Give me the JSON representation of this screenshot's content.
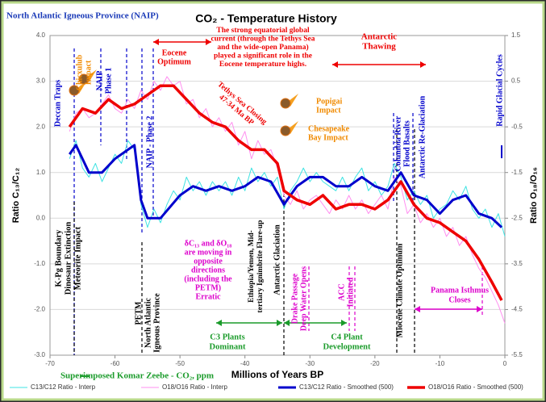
{
  "chart_data": {
    "type": "line",
    "title": "CO₂ - Temperature History",
    "xlabel": "Millions of Years BP",
    "ylabel": "Ratio C₁₃/C₁₂",
    "y2label": "Ratio O₁₈/O₁₆",
    "xlim": [
      -70,
      0
    ],
    "xticks": [
      -70,
      -60,
      -50,
      -40,
      -30,
      -20,
      -10,
      0
    ],
    "ylim": [
      -3,
      4
    ],
    "yticks": [
      {
        "value": -3,
        "label": "-3.0"
      },
      {
        "value": -2,
        "label": "-2.0"
      },
      {
        "value": -1,
        "label": "-1.0"
      },
      {
        "value": 0,
        "label": "0.0"
      },
      {
        "value": 1,
        "label": "1.0"
      },
      {
        "value": 2,
        "label": "2.0"
      },
      {
        "value": 3,
        "label": "3.0"
      },
      {
        "value": 4,
        "label": "4.0"
      }
    ],
    "y2lim": [
      -5.5,
      1.5
    ],
    "y2ticks": [
      -5.5,
      -4.5,
      -3.5,
      -2.5,
      -1.5,
      -0.5,
      0.5,
      1.5
    ],
    "grid": true,
    "legend_note": "Superimposed Komar Zeebe - CO₂, ppm",
    "series": [
      {
        "name": "C13/C12 Ratio - Interp",
        "color": "#3fe3e3",
        "width": 1,
        "x": [
          -67,
          -66,
          -65,
          -64,
          -63,
          -62,
          -61,
          -60,
          -59,
          -58,
          -57,
          -56,
          -55,
          -54,
          -53,
          -52,
          -51,
          -50,
          -49,
          -48,
          -47,
          -46,
          -45,
          -44,
          -43,
          -42,
          -41,
          -40,
          -39,
          -38,
          -37,
          -36,
          -35,
          -34,
          -33,
          -32,
          -31,
          -30,
          -29,
          -28,
          -27,
          -26,
          -25,
          -24,
          -23,
          -22,
          -21,
          -20,
          -19,
          -18,
          -17,
          -16,
          -15,
          -14,
          -13,
          -12,
          -11,
          -10,
          -9,
          -8,
          -7,
          -6,
          -5,
          -4,
          -3,
          -2,
          -1,
          0
        ],
        "values": [
          1.3,
          1.7,
          1.1,
          0.9,
          1.2,
          0.8,
          1.1,
          1.4,
          1.2,
          1.7,
          1.5,
          0.3,
          -0.2,
          0.2,
          -0.1,
          0.3,
          0.6,
          0.4,
          0.9,
          0.6,
          0.8,
          0.5,
          0.8,
          0.6,
          0.8,
          0.5,
          0.9,
          0.6,
          1.1,
          0.8,
          1.0,
          0.7,
          0.9,
          0.2,
          0.6,
          0.8,
          1.1,
          0.8,
          1.0,
          0.8,
          0.7,
          0.6,
          0.9,
          0.6,
          0.9,
          1.1,
          0.6,
          0.8,
          0.5,
          0.7,
          1.2,
          0.9,
          0.4,
          0.6,
          0.3,
          0.5,
          0.0,
          0.2,
          0.3,
          0.6,
          0.4,
          0.7,
          0.2,
          0.0,
          0.2,
          -0.2,
          0.1,
          -0.4
        ]
      },
      {
        "name": "O18/O16 Ratio - Interp",
        "color": "#ff8ff0",
        "width": 1,
        "axis": "y2",
        "x": [
          -67,
          -66,
          -65,
          -64,
          -63,
          -62,
          -61,
          -60,
          -59,
          -58,
          -57,
          -56,
          -55,
          -54,
          -53,
          -52,
          -51,
          -50,
          -49,
          -48,
          -47,
          -46,
          -45,
          -44,
          -43,
          -42,
          -41,
          -40,
          -39,
          -38,
          -37,
          -36,
          -35,
          -34,
          -33,
          -32,
          -31,
          -30,
          -29,
          -28,
          -27,
          -26,
          -25,
          -24,
          -23,
          -22,
          -21,
          -20,
          -19,
          -18,
          -17,
          -16,
          -15,
          -14,
          -13,
          -12,
          -11,
          -10,
          -9,
          -8,
          -7,
          -6,
          -5,
          -4,
          -3,
          -2,
          -1,
          0
        ],
        "values": [
          -0.6,
          -0.2,
          -0.1,
          -0.3,
          -0.2,
          0.0,
          0.2,
          -0.1,
          -0.2,
          0.1,
          -0.1,
          0.3,
          0.1,
          0.5,
          0.3,
          0.6,
          0.4,
          0.5,
          0.0,
          0.1,
          -0.3,
          -0.1,
          -0.5,
          -0.3,
          -0.6,
          -0.4,
          -0.9,
          -0.6,
          -1.2,
          -0.8,
          -1.1,
          -1.0,
          -1.4,
          -2.0,
          -2.2,
          -1.9,
          -2.3,
          -2.1,
          -2.0,
          -2.2,
          -2.4,
          -2.1,
          -2.3,
          -2.0,
          -2.3,
          -2.1,
          -2.4,
          -2.2,
          -2.0,
          -2.3,
          -1.6,
          -1.8,
          -2.4,
          -2.2,
          -2.6,
          -2.4,
          -2.7,
          -2.5,
          -2.9,
          -2.7,
          -3.1,
          -2.9,
          -3.3,
          -3.6,
          -3.8,
          -4.1,
          -4.4,
          -4.8
        ]
      },
      {
        "name": "C13/C12 Ratio - Smoothed (500)",
        "color": "#0000cc",
        "width": 3,
        "x": [
          -67,
          -66,
          -64,
          -62,
          -60,
          -58,
          -57,
          -56,
          -55,
          -53,
          -50,
          -48,
          -46,
          -44,
          -42,
          -40,
          -38,
          -36,
          -34,
          -32,
          -30,
          -28,
          -26,
          -24,
          -22,
          -20,
          -18,
          -16,
          -14,
          -12,
          -10,
          -8,
          -6,
          -4,
          -2,
          -0.5
        ],
        "values": [
          1.4,
          1.6,
          1.0,
          1.0,
          1.3,
          1.5,
          1.6,
          0.4,
          0.0,
          0.0,
          0.5,
          0.7,
          0.6,
          0.7,
          0.6,
          0.7,
          0.9,
          0.8,
          0.3,
          0.7,
          0.9,
          0.9,
          0.7,
          0.7,
          0.9,
          0.7,
          0.6,
          1.0,
          0.5,
          0.4,
          0.1,
          0.4,
          0.5,
          0.1,
          0.0,
          -0.2
        ]
      },
      {
        "name": "O18/O16 Ratio - Smoothed (500)",
        "color": "#ee0000",
        "width": 3.5,
        "axis": "y2",
        "x": [
          -67,
          -65,
          -63,
          -61,
          -59,
          -57,
          -55,
          -53,
          -51,
          -49,
          -47,
          -45,
          -43,
          -41,
          -39,
          -37,
          -35,
          -34,
          -32,
          -30,
          -28,
          -26,
          -24,
          -22,
          -20,
          -18,
          -16,
          -14,
          -12,
          -10,
          -8,
          -6,
          -4,
          -2,
          -0.5
        ],
        "values": [
          -0.5,
          -0.1,
          -0.2,
          0.1,
          -0.1,
          0.0,
          0.2,
          0.4,
          0.4,
          0.1,
          -0.2,
          -0.4,
          -0.5,
          -0.8,
          -1.0,
          -1.0,
          -1.3,
          -1.9,
          -2.1,
          -2.2,
          -2.0,
          -2.3,
          -2.2,
          -2.2,
          -2.3,
          -2.1,
          -1.7,
          -2.2,
          -2.5,
          -2.6,
          -2.8,
          -3.0,
          -3.4,
          -3.9,
          -4.3
        ]
      }
    ],
    "annotations": [
      [
        "North Atlantic Igneous Province (NAIP)"
      ],
      [
        "Deccan Traps"
      ],
      [
        "Chicxulub",
        "Impact"
      ],
      [
        "NAIP",
        "Phase 1"
      ],
      [
        "Eocene",
        "Optimum"
      ],
      [
        "The strong equatorial global",
        "current (through the Tethys Sea",
        "and the wide-open Panama)",
        "played a significant role in the",
        "Eocene temperature highs."
      ],
      [
        "NAIP - Phase 2"
      ],
      [
        "Tethys Sea Closing",
        "47-34 Ma BP"
      ],
      [
        "Popigai",
        "Impact"
      ],
      [
        "Chesapeake",
        "Bay Impact"
      ],
      [
        "Antarctic",
        "Thawing"
      ],
      [
        "Columbia River",
        "Flood Basalts"
      ],
      [
        "Antarctic Re-Glaciation"
      ],
      [
        "Rapid Glacial Cycles"
      ],
      [
        "K-Pg Boundary",
        "Dinosaur Extinction",
        "Meteorite Impact"
      ],
      [
        "PETM"
      ],
      [
        "North Atlantic",
        "Igneous Province"
      ],
      [
        "δC₁₃ and δO₁₈",
        "are moving in",
        "opposite",
        "directions",
        "(including the",
        "PETM)",
        "Erratic"
      ],
      [
        "Ethiopia/Yemen, Mid-",
        "tertiary Ignimbrite Flare-up"
      ],
      [
        "Antarctic Glaciation"
      ],
      [
        "Drake Passage",
        "Deep Water Opens"
      ],
      [
        "ACC",
        "Initiated"
      ],
      [
        "C3 Plants",
        "Dominant"
      ],
      [
        "C4 Plant",
        "Development"
      ],
      [
        "Miocene Climate Optimum"
      ],
      [
        "Panama Isthmus",
        "Closes"
      ]
    ]
  }
}
